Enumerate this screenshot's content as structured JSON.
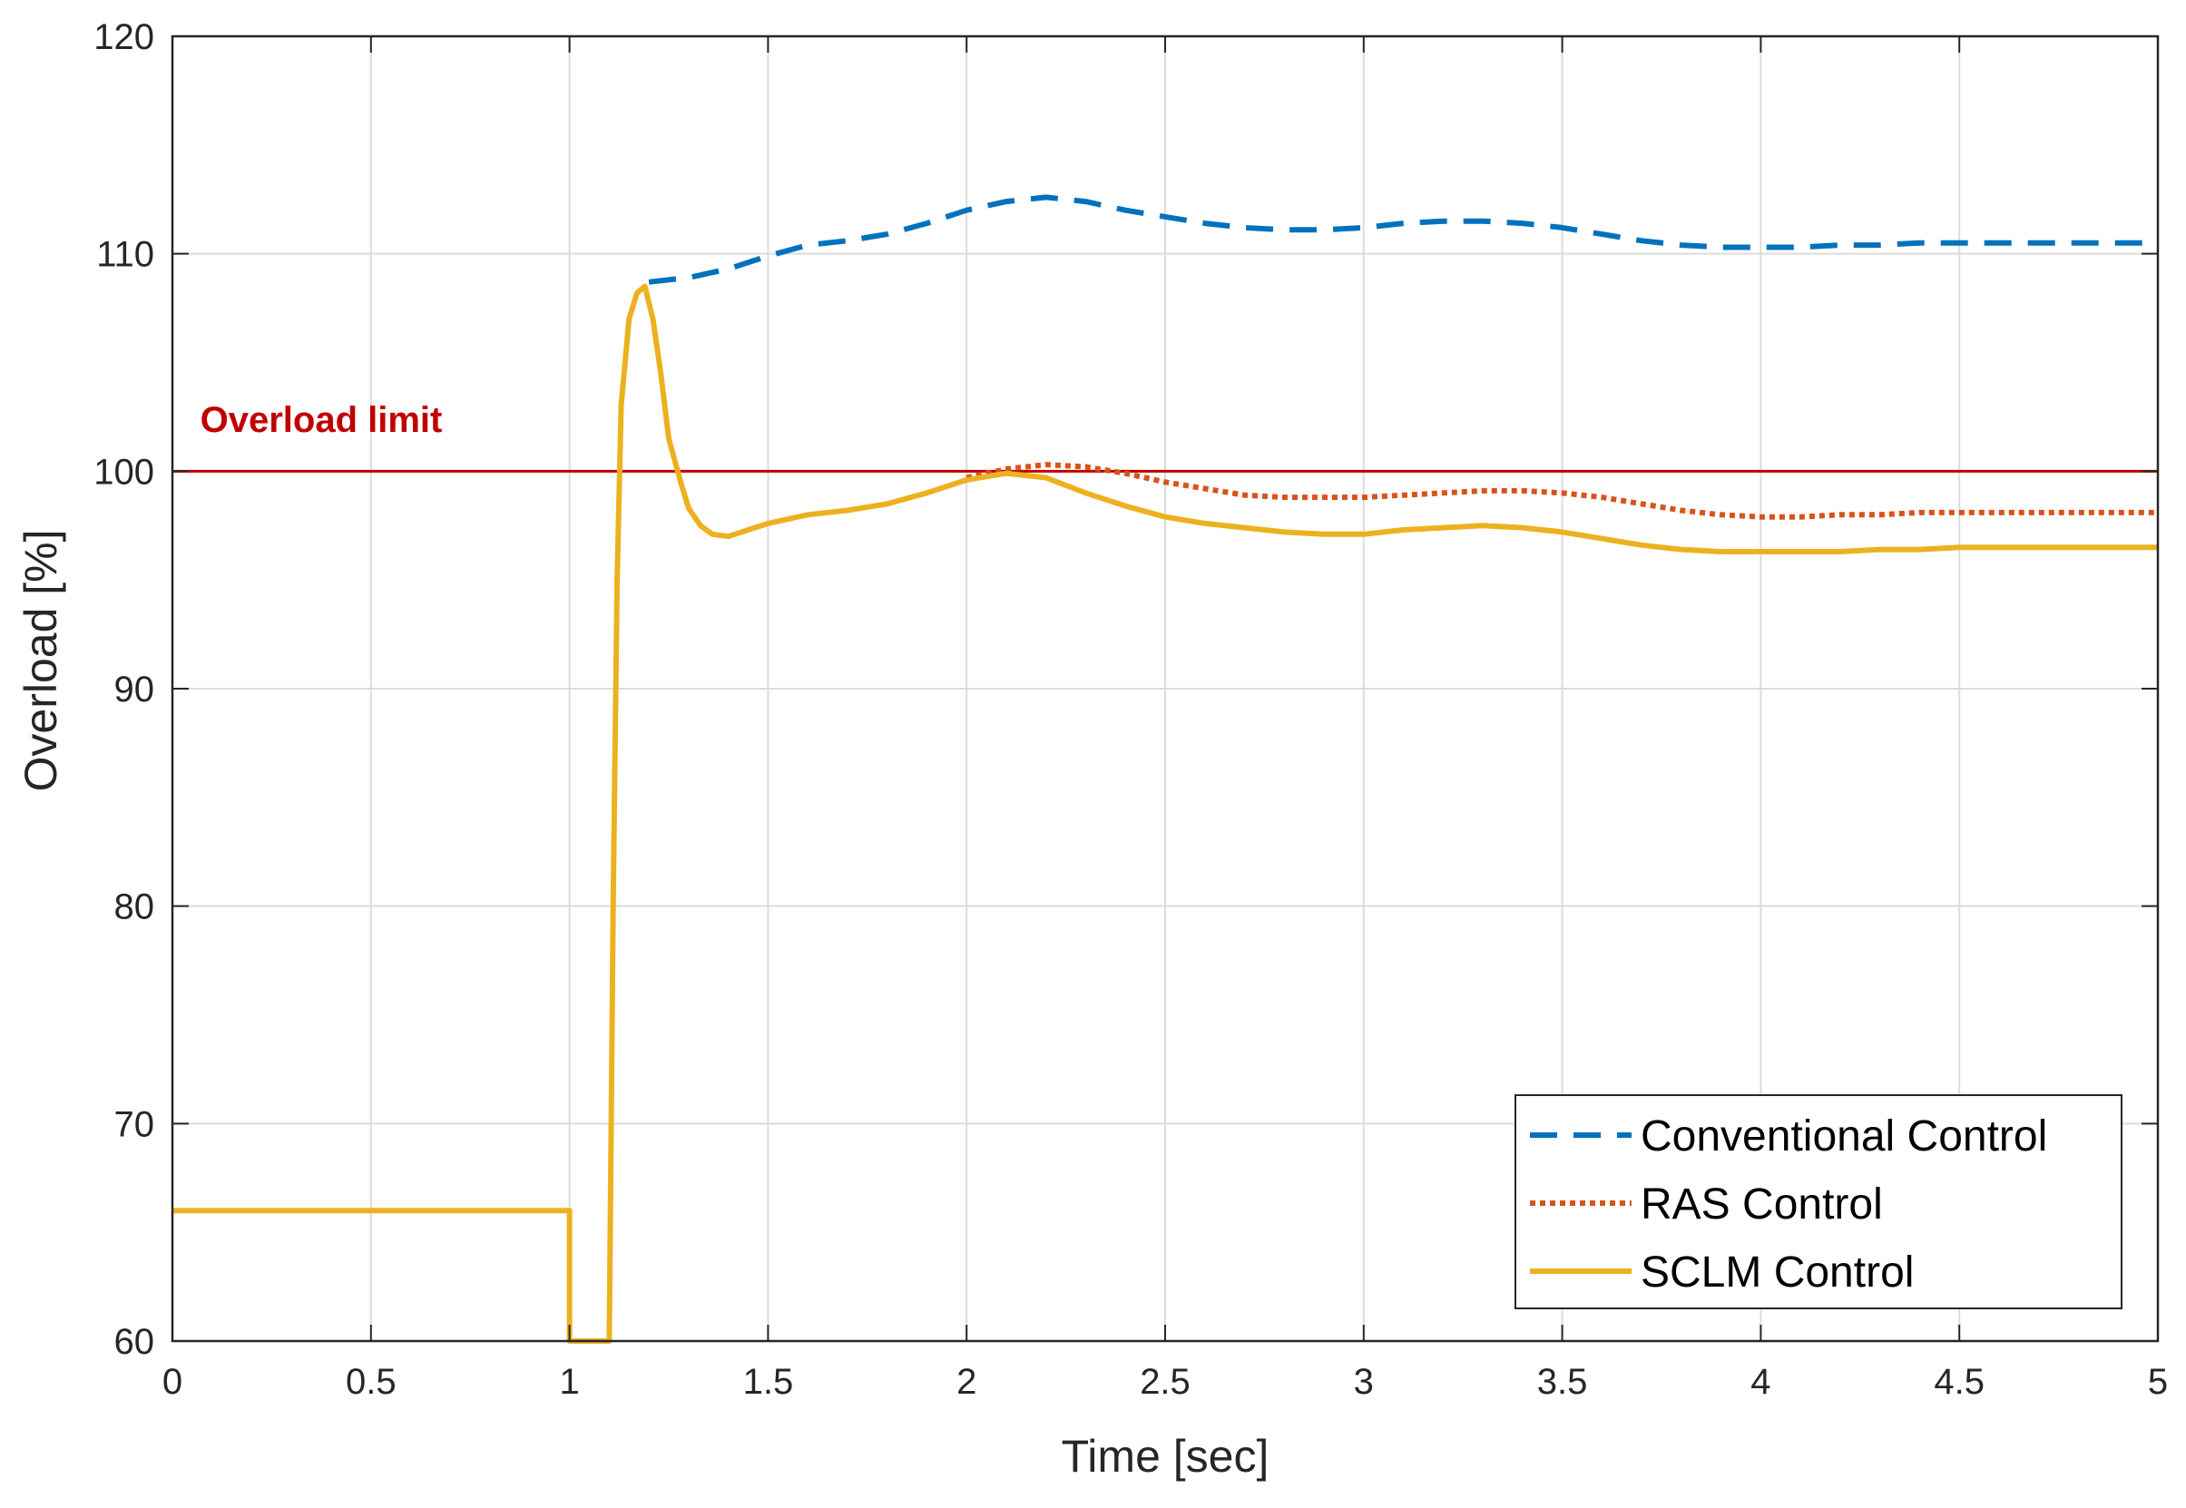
{
  "chart_data": {
    "type": "line",
    "title": "",
    "xlabel": "Time [sec]",
    "ylabel": "Overload [%]",
    "xlim": [
      0,
      5
    ],
    "ylim": [
      60,
      120
    ],
    "xticks": [
      0,
      0.5,
      1,
      1.5,
      2,
      2.5,
      3,
      3.5,
      4,
      4.5,
      5
    ],
    "xtick_labels": [
      "0",
      "0.5",
      "1",
      "1.5",
      "2",
      "2.5",
      "3",
      "3.5",
      "4",
      "4.5",
      "5"
    ],
    "yticks": [
      60,
      70,
      80,
      90,
      100,
      110,
      120
    ],
    "ytick_labels": [
      "60",
      "70",
      "80",
      "90",
      "100",
      "110",
      "120"
    ],
    "grid": true,
    "legend_position": "bottom-right",
    "annotation": {
      "text": "Overload limit",
      "value": 100,
      "color": "#c00000",
      "label_x": 0.07,
      "label_y": 101.8
    },
    "series": [
      {
        "name": "Conventional Control",
        "style": "dashed",
        "color": "#0072bd",
        "x": [
          1.2,
          1.3,
          1.4,
          1.5,
          1.6,
          1.7,
          1.8,
          1.9,
          2.0,
          2.1,
          2.2,
          2.3,
          2.4,
          2.5,
          2.6,
          2.7,
          2.8,
          2.9,
          3.0,
          3.1,
          3.2,
          3.3,
          3.4,
          3.5,
          3.6,
          3.7,
          3.8,
          3.9,
          4.0,
          4.1,
          4.2,
          4.3,
          4.4,
          4.5,
          4.6,
          4.7,
          4.8,
          4.9,
          5.0
        ],
        "y": [
          108.7,
          108.9,
          109.3,
          109.9,
          110.4,
          110.6,
          110.9,
          111.4,
          112.0,
          112.4,
          112.6,
          112.4,
          112.0,
          111.7,
          111.4,
          111.2,
          111.1,
          111.1,
          111.2,
          111.4,
          111.5,
          111.5,
          111.4,
          111.2,
          110.9,
          110.6,
          110.4,
          110.3,
          110.3,
          110.3,
          110.4,
          110.4,
          110.5,
          110.5,
          110.5,
          110.5,
          110.5,
          110.5,
          110.5
        ]
      },
      {
        "name": "RAS Control",
        "style": "dotted",
        "color": "#d95319",
        "x": [
          2.0,
          2.1,
          2.2,
          2.3,
          2.4,
          2.5,
          2.6,
          2.7,
          2.8,
          2.9,
          3.0,
          3.1,
          3.2,
          3.3,
          3.4,
          3.5,
          3.6,
          3.7,
          3.8,
          3.9,
          4.0,
          4.1,
          4.2,
          4.3,
          4.4,
          4.5,
          4.6,
          4.7,
          4.8,
          4.9,
          5.0
        ],
        "y": [
          99.7,
          100.1,
          100.3,
          100.2,
          99.9,
          99.5,
          99.2,
          98.9,
          98.8,
          98.8,
          98.8,
          98.9,
          99.0,
          99.1,
          99.1,
          99.0,
          98.8,
          98.5,
          98.2,
          98.0,
          97.9,
          97.9,
          98.0,
          98.0,
          98.1,
          98.1,
          98.1,
          98.1,
          98.1,
          98.1,
          98.1
        ]
      },
      {
        "name": "SCLM Control",
        "style": "solid",
        "color": "#edb120",
        "x": [
          0,
          1.0,
          1.0,
          1.1,
          1.11,
          1.12,
          1.13,
          1.15,
          1.17,
          1.19,
          1.21,
          1.23,
          1.25,
          1.28,
          1.3,
          1.33,
          1.36,
          1.4,
          1.45,
          1.5,
          1.6,
          1.7,
          1.8,
          1.9,
          2.0,
          2.1,
          2.2,
          2.3,
          2.4,
          2.5,
          2.6,
          2.7,
          2.8,
          2.9,
          3.0,
          3.1,
          3.2,
          3.3,
          3.4,
          3.5,
          3.6,
          3.7,
          3.8,
          3.9,
          4.0,
          4.1,
          4.2,
          4.3,
          4.4,
          4.5,
          4.6,
          4.7,
          4.8,
          4.9,
          5.0
        ],
        "y": [
          66,
          66,
          60,
          60,
          80,
          95,
          103,
          107,
          108.2,
          108.5,
          107.0,
          104.5,
          101.5,
          99.5,
          98.3,
          97.5,
          97.1,
          97.0,
          97.3,
          97.6,
          98.0,
          98.2,
          98.5,
          99.0,
          99.6,
          99.9,
          99.7,
          99.0,
          98.4,
          97.9,
          97.6,
          97.4,
          97.2,
          97.1,
          97.1,
          97.3,
          97.4,
          97.5,
          97.4,
          97.2,
          96.9,
          96.6,
          96.4,
          96.3,
          96.3,
          96.3,
          96.3,
          96.4,
          96.4,
          96.5,
          96.5,
          96.5,
          96.5,
          96.5,
          96.5
        ]
      }
    ]
  }
}
